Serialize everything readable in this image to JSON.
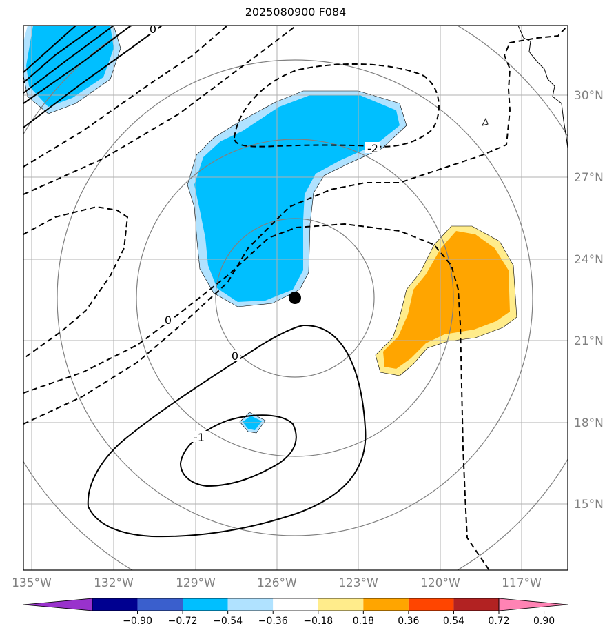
{
  "title": "2025080900 F084",
  "map": {
    "lat_ticks": [
      "30°N",
      "27°N",
      "24°N",
      "21°N",
      "18°N",
      "15°N"
    ],
    "lon_ticks": [
      "135°W",
      "132°W",
      "129°W",
      "126°W",
      "123°W",
      "120°W",
      "117°W"
    ],
    "extent": {
      "lon_min": -135.3,
      "lon_max": -115.3,
      "lat_min": 12.7,
      "lat_max": 32.6
    },
    "center": {
      "lon": -124.8,
      "lat": 22.5
    },
    "contour_labels": [
      "0",
      "0",
      "0",
      "-1",
      "-2"
    ]
  },
  "colorbar": {
    "colors": [
      "#9932cc",
      "#000090",
      "#3a5fcd",
      "#00bfff",
      "#b0e2ff",
      "#ffffff",
      "#ffec8b",
      "#ffa500",
      "#ff4500",
      "#b22222",
      "#ff83b4"
    ],
    "ticks": [
      "−0.90",
      "−0.72",
      "−0.54",
      "−0.36",
      "−0.18",
      "0.18",
      "0.36",
      "0.54",
      "0.72",
      "0.90"
    ]
  },
  "colors": {
    "negative_fill": "#00bfff",
    "negative_edge": "#b0e2ff",
    "positive_fill": "#ffa500",
    "positive_edge": "#ffec8b",
    "gridline": "#b0b0b0",
    "range_ring": "#808080",
    "center_marker": "#000000"
  }
}
